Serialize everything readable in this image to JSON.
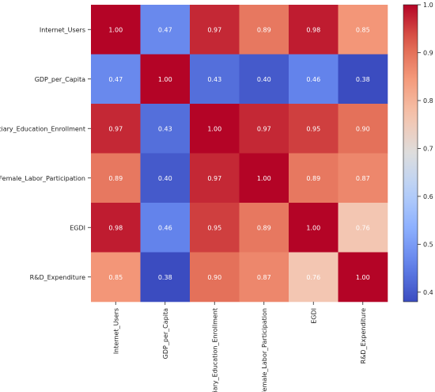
{
  "chart_data": {
    "type": "heatmap",
    "title": "",
    "xlabel": "",
    "ylabel": "",
    "categories": [
      "Internet_Users",
      "GDP_per_Capita",
      "Tertiary_Education_Enrollment",
      "Female_Labor_Participation",
      "EGDI",
      "R&D_Expenditure"
    ],
    "values": [
      [
        1.0,
        0.47,
        0.97,
        0.89,
        0.98,
        0.85
      ],
      [
        0.47,
        1.0,
        0.43,
        0.4,
        0.46,
        0.38
      ],
      [
        0.97,
        0.43,
        1.0,
        0.97,
        0.95,
        0.9
      ],
      [
        0.89,
        0.4,
        0.97,
        1.0,
        0.89,
        0.87
      ],
      [
        0.98,
        0.46,
        0.95,
        0.89,
        1.0,
        0.76
      ],
      [
        0.85,
        0.38,
        0.9,
        0.87,
        0.76,
        1.0
      ]
    ],
    "value_labels": [
      [
        "1.00",
        "0.47",
        "0.97",
        "0.89",
        "0.98",
        "0.85"
      ],
      [
        "0.47",
        "1.00",
        "0.43",
        "0.40",
        "0.46",
        "0.38"
      ],
      [
        "0.97",
        "0.43",
        "1.00",
        "0.97",
        "0.95",
        "0.90"
      ],
      [
        "0.89",
        "0.40",
        "0.97",
        "1.00",
        "0.89",
        "0.87"
      ],
      [
        "0.98",
        "0.46",
        "0.95",
        "0.89",
        "1.00",
        "0.76"
      ],
      [
        "0.85",
        "0.38",
        "0.90",
        "0.87",
        "0.76",
        "1.00"
      ]
    ],
    "colorbar": {
      "colormap": "coolwarm",
      "range": [
        0.38,
        1.0
      ],
      "ticks": [
        0.4,
        0.5,
        0.6,
        0.7,
        0.8,
        0.9,
        1.0
      ],
      "tick_labels": [
        "0.4",
        "0.5",
        "0.6",
        "0.7",
        "0.8",
        "0.9",
        "1.0"
      ]
    }
  }
}
